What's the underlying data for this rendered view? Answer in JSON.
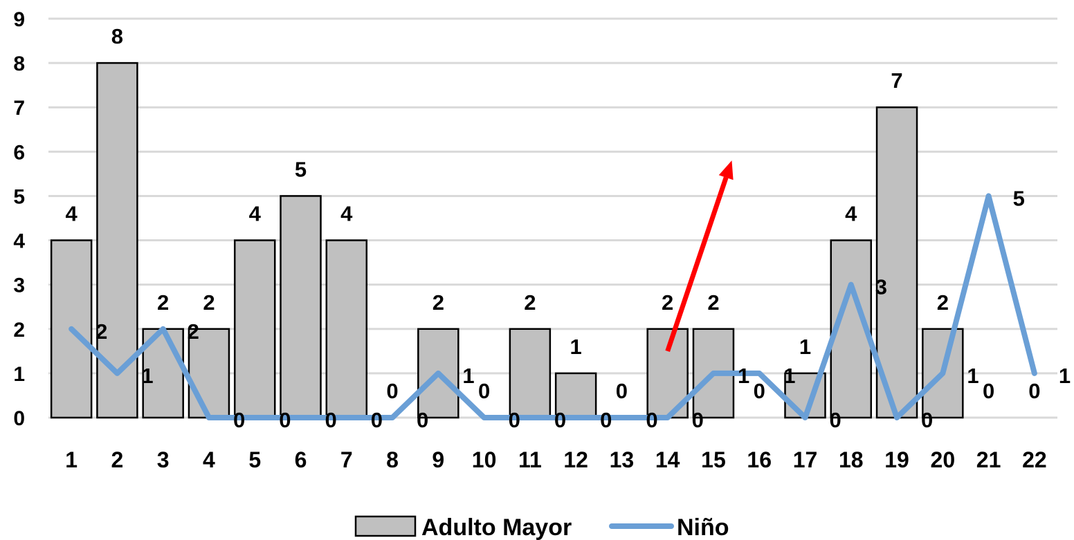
{
  "chart_data": {
    "type": "bar",
    "categories": [
      "1",
      "2",
      "3",
      "4",
      "5",
      "6",
      "7",
      "8",
      "9",
      "10",
      "11",
      "12",
      "13",
      "14",
      "15",
      "16",
      "17",
      "18",
      "19",
      "20",
      "21",
      "22"
    ],
    "ylim": [
      0,
      9
    ],
    "yticks": [
      "0",
      "1",
      "2",
      "3",
      "4",
      "5",
      "6",
      "7",
      "8",
      "9"
    ],
    "grid": true,
    "legend_position": "bottom",
    "series": [
      {
        "name": "Adulto Mayor",
        "kind": "bar",
        "color": "#c0c0c0",
        "values": [
          4,
          8,
          2,
          2,
          4,
          5,
          4,
          0,
          2,
          0,
          2,
          1,
          0,
          2,
          2,
          0,
          1,
          4,
          7,
          2,
          0,
          0
        ]
      },
      {
        "name": "Niño",
        "kind": "line",
        "color": "#6a9fd6",
        "values": [
          2,
          1,
          2,
          0,
          0,
          0,
          0,
          0,
          1,
          0,
          0,
          0,
          0,
          0,
          1,
          1,
          0,
          3,
          0,
          1,
          5,
          1
        ]
      }
    ],
    "annotation": {
      "type": "arrow",
      "color": "#ff0000",
      "from": [
        14,
        1.5
      ],
      "to": [
        15.4,
        5.8
      ]
    }
  }
}
